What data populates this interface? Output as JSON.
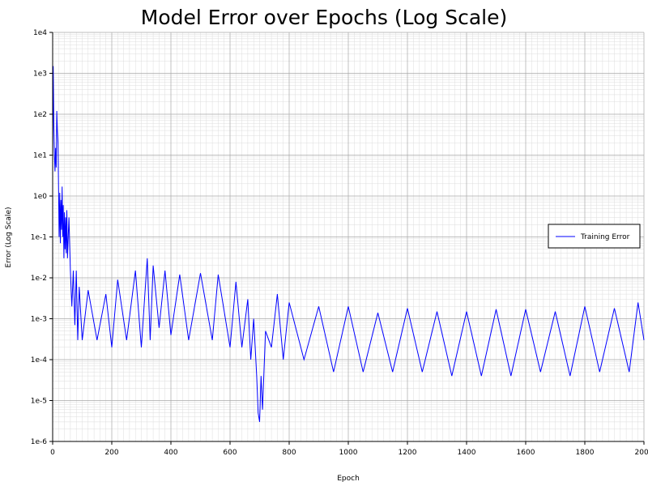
{
  "chart_data": {
    "type": "line",
    "title": "Model Error over Epochs (Log Scale)",
    "xlabel": "Epoch",
    "ylabel": "Error (Log Scale)",
    "xlim": [
      0,
      2000
    ],
    "ylim": [
      1e-06,
      10000
    ],
    "yscale": "log",
    "grid": true,
    "minor_grid": true,
    "legend_position": "right",
    "x_ticks": [
      "0",
      "200",
      "400",
      "600",
      "800",
      "1000",
      "1200",
      "1400",
      "1600",
      "1800",
      "2000"
    ],
    "x_tick_values": [
      0,
      200,
      400,
      600,
      800,
      1000,
      1200,
      1400,
      1600,
      1800,
      2000
    ],
    "y_ticks": [
      "1e-6",
      "1e-5",
      "1e-4",
      "1e-3",
      "1e-2",
      "1e-1",
      "1e0",
      "1e1",
      "1e2",
      "1e3",
      "1e4"
    ],
    "y_tick_values": [
      1e-06,
      1e-05,
      0.0001,
      0.001,
      0.01,
      0.1,
      1,
      10,
      100,
      1000,
      10000
    ],
    "series": [
      {
        "name": "Training Error",
        "color": "#0000ff",
        "x": [
          0,
          2,
          4,
          6,
          8,
          10,
          12,
          14,
          16,
          18,
          20,
          22,
          24,
          26,
          28,
          30,
          32,
          34,
          36,
          38,
          40,
          42,
          44,
          46,
          48,
          50,
          55,
          60,
          65,
          70,
          75,
          80,
          85,
          90,
          100,
          120,
          150,
          180,
          200,
          220,
          250,
          280,
          300,
          320,
          330,
          340,
          360,
          380,
          400,
          430,
          460,
          500,
          540,
          560,
          600,
          620,
          640,
          660,
          670,
          680,
          690,
          695,
          700,
          705,
          710,
          720,
          740,
          760,
          780,
          800,
          850,
          900,
          950,
          1000,
          1050,
          1100,
          1150,
          1200,
          1250,
          1300,
          1350,
          1400,
          1450,
          1500,
          1550,
          1600,
          1650,
          1700,
          1750,
          1800,
          1850,
          1900,
          1950,
          1980,
          2000
        ],
        "y": [
          10,
          1500,
          50,
          10,
          4,
          15,
          5,
          120,
          40,
          20,
          1.5,
          0.1,
          1.2,
          0.07,
          0.8,
          0.15,
          1.7,
          0.1,
          0.6,
          0.03,
          0.4,
          0.05,
          0.3,
          0.04,
          0.45,
          0.03,
          0.3,
          0.015,
          0.002,
          0.015,
          0.0007,
          0.015,
          0.0003,
          0.006,
          0.0003,
          0.005,
          0.0003,
          0.004,
          0.0002,
          0.009,
          0.0003,
          0.015,
          0.0002,
          0.03,
          0.0003,
          0.02,
          0.0006,
          0.015,
          0.0004,
          0.012,
          0.0003,
          0.013,
          0.0003,
          0.012,
          0.0002,
          0.008,
          0.0002,
          0.003,
          0.0001,
          0.001,
          4e-05,
          5e-06,
          3e-06,
          4e-05,
          6e-06,
          0.0005,
          0.0002,
          0.004,
          0.0001,
          0.0025,
          0.0001,
          0.002,
          5e-05,
          0.002,
          5e-05,
          0.0014,
          5e-05,
          0.0018,
          5e-05,
          0.0015,
          4e-05,
          0.0015,
          4e-05,
          0.0017,
          4e-05,
          0.0017,
          5e-05,
          0.0015,
          4e-05,
          0.002,
          5e-05,
          0.0018,
          5e-05,
          0.0025,
          0.0003
        ]
      }
    ]
  }
}
